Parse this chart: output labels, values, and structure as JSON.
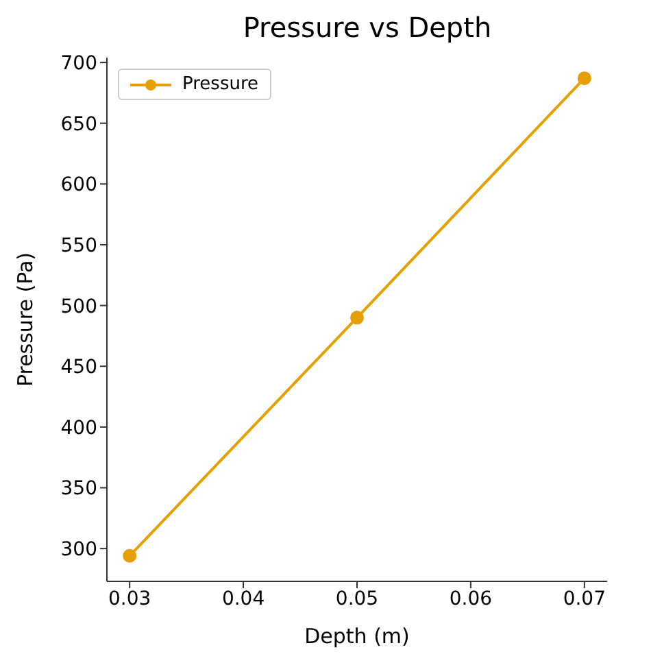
{
  "chart_data": {
    "type": "line",
    "title": "Pressure vs Depth",
    "xlabel": "Depth (m)",
    "ylabel": "Pressure (Pa)",
    "x": [
      0.03,
      0.05,
      0.07
    ],
    "series": [
      {
        "name": "Pressure",
        "color": "#e69f00",
        "values": [
          294,
          490,
          687
        ]
      }
    ],
    "xlim": [
      0.028,
      0.072
    ],
    "xticks": [
      0.03,
      0.04,
      0.05,
      0.06,
      0.07
    ],
    "ylim": [
      273,
      704
    ],
    "yticks": [
      300,
      350,
      400,
      450,
      500,
      550,
      600,
      650,
      700
    ],
    "grid": false,
    "legend": "top left",
    "marker": "circle",
    "line_style": "solid"
  }
}
